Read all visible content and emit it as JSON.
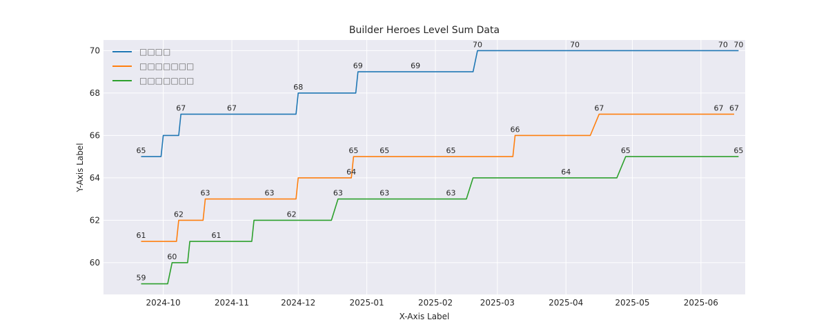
{
  "chart_data": {
    "type": "line",
    "title": "Builder Heroes Level Sum Data",
    "xlabel": "X-Axis Label",
    "ylabel": "Y-Axis Label",
    "x_axis": {
      "type": "date",
      "range": [
        "2024-09-04",
        "2025-06-21"
      ],
      "ticks": [
        {
          "date": "2024-10-01",
          "label": "2024-10"
        },
        {
          "date": "2024-11-01",
          "label": "2024-11"
        },
        {
          "date": "2024-12-01",
          "label": "2024-12"
        },
        {
          "date": "2025-01-01",
          "label": "2025-01"
        },
        {
          "date": "2025-02-01",
          "label": "2025-02"
        },
        {
          "date": "2025-03-01",
          "label": "2025-03"
        },
        {
          "date": "2025-04-01",
          "label": "2025-04"
        },
        {
          "date": "2025-05-01",
          "label": "2025-05"
        },
        {
          "date": "2025-06-01",
          "label": "2025-06"
        }
      ]
    },
    "y_axis": {
      "range": [
        58.5,
        70.5
      ],
      "ticks": [
        60,
        62,
        64,
        66,
        68,
        70
      ]
    },
    "grid": true,
    "legend": {
      "placement": "top-left"
    },
    "series": [
      {
        "name": "□□□□",
        "color": "#1f77b4",
        "points": [
          {
            "x": "2024-09-21",
            "y": 65,
            "label": "65"
          },
          {
            "x": "2024-09-30",
            "y": 65
          },
          {
            "x": "2024-10-01",
            "y": 66
          },
          {
            "x": "2024-10-08",
            "y": 66
          },
          {
            "x": "2024-10-09",
            "y": 67,
            "label": "67"
          },
          {
            "x": "2024-11-01",
            "y": 67,
            "label": "67"
          },
          {
            "x": "2024-11-30",
            "y": 67
          },
          {
            "x": "2024-12-01",
            "y": 68,
            "label": "68"
          },
          {
            "x": "2024-12-27",
            "y": 68
          },
          {
            "x": "2024-12-28",
            "y": 69,
            "label": "69"
          },
          {
            "x": "2025-01-23",
            "y": 69,
            "label": "69"
          },
          {
            "x": "2025-02-18",
            "y": 69
          },
          {
            "x": "2025-02-20",
            "y": 70,
            "label": "70"
          },
          {
            "x": "2025-04-05",
            "y": 70,
            "label": "70"
          },
          {
            "x": "2025-06-11",
            "y": 70,
            "label": "70"
          },
          {
            "x": "2025-06-18",
            "y": 70,
            "label": "70"
          }
        ]
      },
      {
        "name": "□□□□□□□",
        "color": "#ff7f0e",
        "points": [
          {
            "x": "2024-09-21",
            "y": 61,
            "label": "61"
          },
          {
            "x": "2024-10-07",
            "y": 61
          },
          {
            "x": "2024-10-08",
            "y": 62,
            "label": "62"
          },
          {
            "x": "2024-10-19",
            "y": 62
          },
          {
            "x": "2024-10-20",
            "y": 63,
            "label": "63"
          },
          {
            "x": "2024-11-18",
            "y": 63,
            "label": "63"
          },
          {
            "x": "2024-11-30",
            "y": 63
          },
          {
            "x": "2024-12-01",
            "y": 64
          },
          {
            "x": "2024-12-25",
            "y": 64,
            "label": "64"
          },
          {
            "x": "2024-12-26",
            "y": 65,
            "label": "65"
          },
          {
            "x": "2025-01-09",
            "y": 65,
            "label": "65"
          },
          {
            "x": "2025-02-08",
            "y": 65,
            "label": "65"
          },
          {
            "x": "2025-03-08",
            "y": 65
          },
          {
            "x": "2025-03-09",
            "y": 66,
            "label": "66"
          },
          {
            "x": "2025-04-12",
            "y": 66
          },
          {
            "x": "2025-04-16",
            "y": 67,
            "label": "67"
          },
          {
            "x": "2025-06-09",
            "y": 67,
            "label": "67"
          },
          {
            "x": "2025-06-16",
            "y": 67,
            "label": "67"
          }
        ]
      },
      {
        "name": "□□□□□□□",
        "color": "#2ca02c",
        "points": [
          {
            "x": "2024-09-21",
            "y": 59,
            "label": "59"
          },
          {
            "x": "2024-10-03",
            "y": 59
          },
          {
            "x": "2024-10-05",
            "y": 60,
            "label": "60"
          },
          {
            "x": "2024-10-12",
            "y": 60
          },
          {
            "x": "2024-10-13",
            "y": 61
          },
          {
            "x": "2024-10-25",
            "y": 61,
            "label": "61"
          },
          {
            "x": "2024-11-10",
            "y": 61
          },
          {
            "x": "2024-11-11",
            "y": 62
          },
          {
            "x": "2024-11-28",
            "y": 62,
            "label": "62"
          },
          {
            "x": "2024-12-16",
            "y": 62
          },
          {
            "x": "2024-12-19",
            "y": 63,
            "label": "63"
          },
          {
            "x": "2025-01-09",
            "y": 63,
            "label": "63"
          },
          {
            "x": "2025-02-08",
            "y": 63,
            "label": "63"
          },
          {
            "x": "2025-02-15",
            "y": 63
          },
          {
            "x": "2025-02-18",
            "y": 64
          },
          {
            "x": "2025-04-01",
            "y": 64,
            "label": "64"
          },
          {
            "x": "2025-04-24",
            "y": 64
          },
          {
            "x": "2025-04-28",
            "y": 65,
            "label": "65"
          },
          {
            "x": "2025-06-18",
            "y": 65,
            "label": "65"
          }
        ]
      }
    ]
  }
}
